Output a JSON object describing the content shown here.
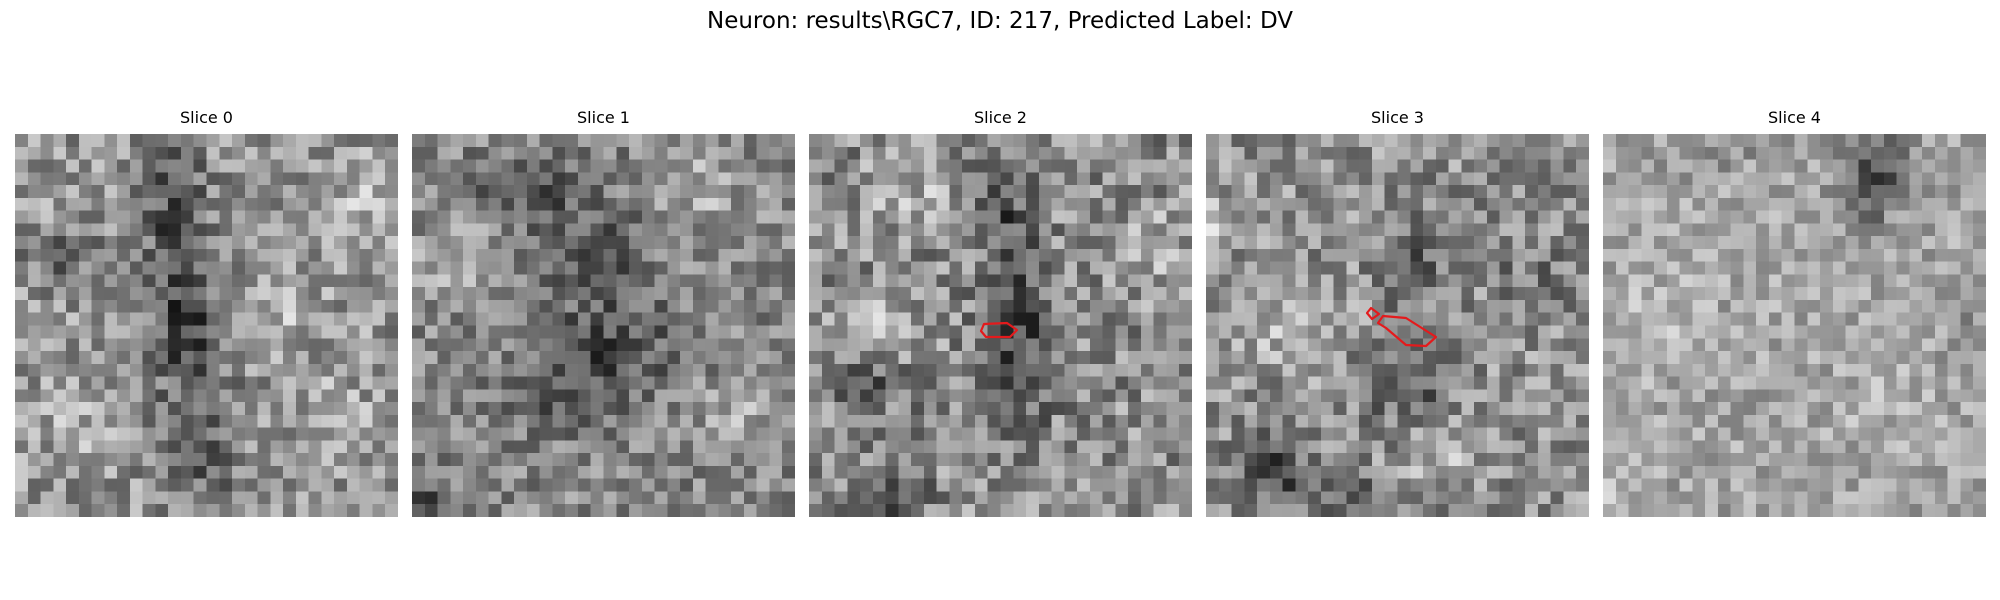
{
  "figure": {
    "title": "Neuron: results\\RGC7, ID: 217, Predicted Label: DV"
  },
  "slices": [
    {
      "title": "Slice 0",
      "image": "grayscale-noise-slice",
      "has_contour": false
    },
    {
      "title": "Slice 1",
      "image": "grayscale-noise-slice",
      "has_contour": false
    },
    {
      "title": "Slice 2",
      "image": "grayscale-noise-slice",
      "has_contour": true
    },
    {
      "title": "Slice 3",
      "image": "grayscale-noise-slice",
      "has_contour": true
    },
    {
      "title": "Slice 4",
      "image": "grayscale-noise-slice",
      "has_contour": false
    }
  ],
  "colors": {
    "contour": "#e41a1c",
    "background": "#ffffff"
  }
}
